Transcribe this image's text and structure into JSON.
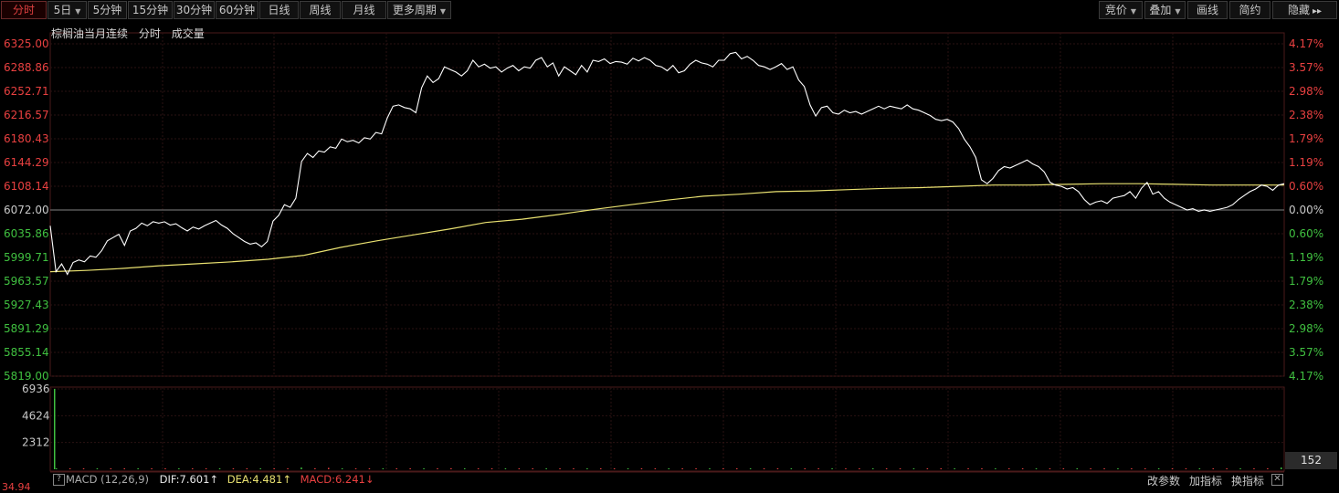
{
  "toolbar": {
    "left": [
      {
        "label": "分时",
        "caret": false,
        "active": true
      },
      {
        "label": "5日",
        "caret": true,
        "active": false
      },
      {
        "label": "5分钟",
        "caret": false,
        "active": false
      },
      {
        "label": "15分钟",
        "caret": false,
        "active": false
      },
      {
        "label": "30分钟",
        "caret": false,
        "active": false
      },
      {
        "label": "60分钟",
        "caret": false,
        "active": false
      },
      {
        "label": "日线",
        "caret": false,
        "active": false
      },
      {
        "label": "周线",
        "caret": false,
        "active": false
      },
      {
        "label": "月线",
        "caret": false,
        "active": false
      },
      {
        "label": "更多周期",
        "caret": true,
        "active": false
      }
    ],
    "right": [
      {
        "label": "竞价",
        "caret": true
      },
      {
        "label": "叠加",
        "caret": true
      },
      {
        "label": "画线",
        "caret": false
      },
      {
        "label": "简约",
        "caret": false
      },
      {
        "label": "隐藏",
        "caret": false,
        "suffix": "▸▸"
      }
    ]
  },
  "info": {
    "name": "棕榈油当月连续",
    "mode": "分时",
    "volume_label": "成交量"
  },
  "macd": {
    "name": "MACD (12,26,9)",
    "dif": "DIF:7.601",
    "dea": "DEA:4.481",
    "macd": "MACD:6.241",
    "question": "?",
    "bottom_left_value": "34.94",
    "change_params": "改参数",
    "add_indicator": "加指标",
    "swap_indicator": "换指标",
    "close": "✕"
  },
  "volume_current": "152",
  "colors": {
    "up": "#e84040",
    "down": "#40c040",
    "price_line": "#ffffff",
    "avg_line": "#e8e070",
    "grid": "#2a1010"
  },
  "chart_data": [
    {
      "type": "line",
      "title": "棕榈油当月连续 分时",
      "ylim": [
        5819.0,
        6325.0
      ],
      "ref_price": 6072.0,
      "y_ticks_left": [
        "6325.00",
        "6288.86",
        "6252.71",
        "6216.57",
        "6180.43",
        "6144.29",
        "6108.14",
        "6072.00",
        "6035.86",
        "5999.71",
        "5963.57",
        "5927.43",
        "5891.29",
        "5855.14",
        "5819.00"
      ],
      "y_ticks_right": [
        "4.17%",
        "3.57%",
        "2.98%",
        "2.38%",
        "1.79%",
        "1.19%",
        "0.60%",
        "0.00%",
        "0.60%",
        "1.19%",
        "1.79%",
        "2.38%",
        "2.98%",
        "3.57%",
        "4.17%"
      ],
      "series": [
        {
          "name": "price",
          "values": [
            6048,
            5978,
            5990,
            5974,
            5992,
            5996,
            5993,
            6002,
            6000,
            6010,
            6025,
            6030,
            6035,
            6018,
            6040,
            6044,
            6052,
            6048,
            6054,
            6052,
            6054,
            6049,
            6051,
            6045,
            6040,
            6046,
            6043,
            6048,
            6052,
            6056,
            6049,
            6044,
            6036,
            6030,
            6024,
            6020,
            6022,
            6016,
            6024,
            6055,
            6064,
            6080,
            6076,
            6090,
            6146,
            6158,
            6152,
            6162,
            6160,
            6168,
            6166,
            6180,
            6176,
            6178,
            6174,
            6182,
            6180,
            6190,
            6188,
            6212,
            6230,
            6232,
            6228,
            6226,
            6220,
            6258,
            6276,
            6266,
            6272,
            6290,
            6286,
            6282,
            6276,
            6284,
            6300,
            6290,
            6294,
            6288,
            6290,
            6282,
            6288,
            6292,
            6284,
            6290,
            6288,
            6300,
            6304,
            6290,
            6296,
            6276,
            6290,
            6284,
            6278,
            6292,
            6282,
            6300,
            6298,
            6302,
            6295,
            6298,
            6297,
            6294,
            6303,
            6299,
            6304,
            6300,
            6292,
            6290,
            6284,
            6292,
            6281,
            6284,
            6294,
            6300,
            6296,
            6294,
            6290,
            6300,
            6300,
            6310,
            6312,
            6302,
            6306,
            6300,
            6292,
            6290,
            6286,
            6290,
            6295,
            6286,
            6290,
            6270,
            6260,
            6232,
            6215,
            6228,
            6230,
            6220,
            6218,
            6224,
            6220,
            6222,
            6218,
            6222,
            6226,
            6230,
            6226,
            6230,
            6228,
            6226,
            6232,
            6226,
            6224,
            6220,
            6216,
            6210,
            6208,
            6210,
            6206,
            6196,
            6180,
            6168,
            6152,
            6118,
            6112,
            6120,
            6132,
            6138,
            6136,
            6140,
            6144,
            6148,
            6142,
            6138,
            6130,
            6114,
            6110,
            6108,
            6104,
            6106,
            6100,
            6088,
            6080,
            6084,
            6086,
            6082,
            6090,
            6092,
            6094,
            6100,
            6090,
            6105,
            6114,
            6096,
            6100,
            6090,
            6084,
            6080,
            6076,
            6072,
            6074,
            6070,
            6072,
            6070,
            6072,
            6074,
            6076,
            6080,
            6088,
            6094,
            6100,
            6104,
            6110,
            6108,
            6102,
            6110,
            6112
          ]
        },
        {
          "name": "avg",
          "values": [
            5978,
            5980,
            5983,
            5987,
            5990,
            5993,
            5997,
            6003,
            6015,
            6025,
            6034,
            6043,
            6053,
            6058,
            6065,
            6073,
            6080,
            6087,
            6093,
            6096,
            6100,
            6101,
            6103,
            6105,
            6106,
            6108,
            6110,
            6110,
            6111,
            6112,
            6112,
            6111,
            6110,
            6110,
            6110
          ]
        }
      ]
    },
    {
      "type": "bar",
      "title": "成交量",
      "ylim": [
        0,
        6936
      ],
      "y_ticks": [
        "6936",
        "4624",
        "2312"
      ],
      "values": [
        6936,
        40,
        60,
        30,
        50,
        40,
        35,
        55,
        45,
        80,
        70,
        60,
        50,
        65,
        55,
        45,
        40,
        60,
        70,
        150,
        90,
        120,
        60,
        45,
        50,
        40,
        35,
        30,
        60,
        55,
        90,
        80,
        40,
        35,
        45,
        60,
        50,
        40,
        55,
        45,
        35,
        30,
        40,
        50,
        35,
        30,
        45,
        40,
        60,
        50,
        40,
        80,
        45,
        35,
        30,
        40,
        50,
        60,
        45,
        30,
        70,
        40,
        35,
        45,
        30,
        40,
        55,
        35,
        45,
        40,
        50,
        35,
        30,
        45,
        40,
        35,
        50,
        30,
        40,
        35,
        45,
        30,
        40,
        55,
        35,
        60,
        45,
        40,
        30,
        50,
        35,
        152
      ]
    }
  ]
}
